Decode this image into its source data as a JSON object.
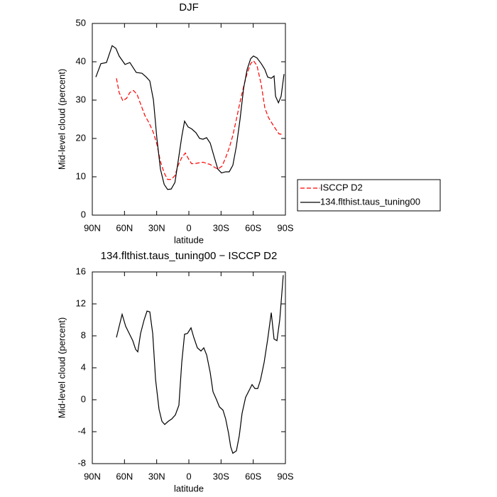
{
  "chart_data": [
    {
      "type": "line",
      "title": "DJF",
      "xlabel": "latitude",
      "ylabel": "Mid-level cloud (percent)",
      "xlim": [
        90,
        -90
      ],
      "xticks": [
        {
          "value": 90,
          "label": "90N"
        },
        {
          "value": 60,
          "label": "60N"
        },
        {
          "value": 30,
          "label": "30N"
        },
        0,
        {
          "value": -30,
          "label": "30S"
        },
        {
          "value": -60,
          "label": "60S"
        },
        {
          "value": -90,
          "label": "90S"
        }
      ],
      "ylim": [
        0,
        50
      ],
      "yticks": [
        0,
        10,
        20,
        30,
        40,
        50
      ],
      "legend": "right",
      "series": [
        {
          "name": "ISCCP D2",
          "color": "#ff0000",
          "dash": true,
          "x": [
            67.5,
            65,
            61.5,
            58,
            55,
            51.6,
            48.3,
            45,
            41,
            37,
            33,
            29.8,
            26.5,
            23,
            19.8,
            16.5,
            13,
            10,
            6.6,
            3.3,
            0,
            -2.6,
            -6.6,
            -13.2,
            -19.9,
            -23.8,
            -27,
            -31,
            -34.3,
            -37.6,
            -41,
            -44.3,
            -47.7,
            -51,
            -54.3,
            -57.6,
            -60.2,
            -63.5,
            -67.5,
            -70.8,
            -74.1,
            -77.4,
            -80.8,
            -84,
            -88
          ],
          "values": [
            35.7,
            32,
            29.8,
            30.5,
            32,
            32.5,
            31.5,
            29,
            26,
            24,
            21.5,
            18.5,
            14,
            11,
            9.3,
            9.3,
            10.3,
            13,
            15,
            16.2,
            14.5,
            13.4,
            13.5,
            13.8,
            13.2,
            12.5,
            12,
            12.8,
            15,
            17.5,
            20.8,
            25,
            29.5,
            33.5,
            37,
            39.5,
            40.3,
            39,
            34,
            28,
            25.5,
            24,
            22.5,
            21.2,
            21
          ]
        },
        {
          "name": "134.flthist.taus_tuning00",
          "color": "#000000",
          "dash": false,
          "x": [
            86.7,
            82,
            76.8,
            71.5,
            68,
            65,
            59.5,
            55,
            49,
            43.7,
            39.7,
            36.4,
            33,
            29.8,
            26.5,
            23,
            19.8,
            16.5,
            13,
            10,
            6.6,
            4,
            0.7,
            -2.6,
            -6.6,
            -10,
            -13.2,
            -16.5,
            -19.9,
            -23.8,
            -27,
            -30.4,
            -34.3,
            -37.6,
            -41,
            -44.3,
            -47.7,
            -51,
            -54.3,
            -57.6,
            -60.2,
            -63.5,
            -67.5,
            -70.8,
            -73.5,
            -76.8,
            -79.4,
            -80.8,
            -83.5,
            -86,
            -88.7
          ],
          "values": [
            36,
            39.5,
            39.8,
            44.2,
            43.5,
            41.5,
            39.3,
            39.8,
            37.2,
            37,
            36,
            35,
            30,
            20,
            12,
            8,
            6.7,
            6.8,
            8.5,
            14,
            20.5,
            24.5,
            23,
            22.5,
            21.5,
            20,
            19.8,
            20.2,
            18.8,
            15,
            12,
            11,
            11.3,
            11.3,
            13,
            18,
            25,
            33,
            38,
            40.8,
            41.5,
            41,
            39.5,
            38,
            36,
            35.7,
            36.3,
            31,
            29.3,
            31,
            36.8
          ]
        }
      ]
    },
    {
      "type": "line",
      "title": "134.flthist.taus_tuning00 − ISCCP D2",
      "xlabel": "latitude",
      "ylabel": "Mid-level cloud (percent)",
      "xlim": [
        90,
        -90
      ],
      "xticks": [
        {
          "value": 90,
          "label": "90N"
        },
        {
          "value": 60,
          "label": "60N"
        },
        {
          "value": 30,
          "label": "30N"
        },
        0,
        {
          "value": -30,
          "label": "30S"
        },
        {
          "value": -60,
          "label": "60S"
        },
        {
          "value": -90,
          "label": "90S"
        }
      ],
      "ylim": [
        -8,
        16
      ],
      "yticks": [
        -8,
        -4,
        0,
        4,
        8,
        12,
        16
      ],
      "series": [
        {
          "color": "#000000",
          "dash": false,
          "x": [
            67.5,
            62.2,
            58.9,
            55.6,
            52.3,
            49.6,
            47.6,
            45,
            41.7,
            39,
            36.4,
            33.7,
            31,
            27.8,
            25.1,
            22.5,
            19.2,
            15.9,
            12.6,
            9.3,
            6.6,
            4,
            1.3,
            -2,
            -4.6,
            -7.9,
            -11.3,
            -13.9,
            -16.6,
            -19.9,
            -22.5,
            -25.8,
            -28.5,
            -31.8,
            -34.3,
            -37,
            -39,
            -41,
            -44.3,
            -47,
            -49.6,
            -52.9,
            -56.3,
            -58.9,
            -61.6,
            -64.2,
            -66.8,
            -70.2,
            -73.5,
            -76.8,
            -79.4,
            -82.1,
            -84.7,
            -88
          ],
          "values": [
            7.8,
            10.7,
            9.2,
            8.3,
            7.4,
            6.3,
            6.0,
            8.3,
            10.0,
            11.1,
            11.0,
            8.3,
            2.5,
            -1.2,
            -2.7,
            -3.1,
            -2.7,
            -2.4,
            -1.9,
            -0.7,
            4.7,
            8.2,
            8.3,
            9.0,
            7.8,
            6.5,
            6.1,
            6.5,
            5.6,
            3.4,
            1.0,
            0,
            -0.9,
            -1.3,
            -2.4,
            -4.2,
            -5.9,
            -6.7,
            -6.4,
            -4.5,
            -1.7,
            0.3,
            1.2,
            1.9,
            1.4,
            1.4,
            2.5,
            4.7,
            7.6,
            10.9,
            7.6,
            7.4,
            10.0,
            15.6
          ]
        }
      ]
    }
  ]
}
